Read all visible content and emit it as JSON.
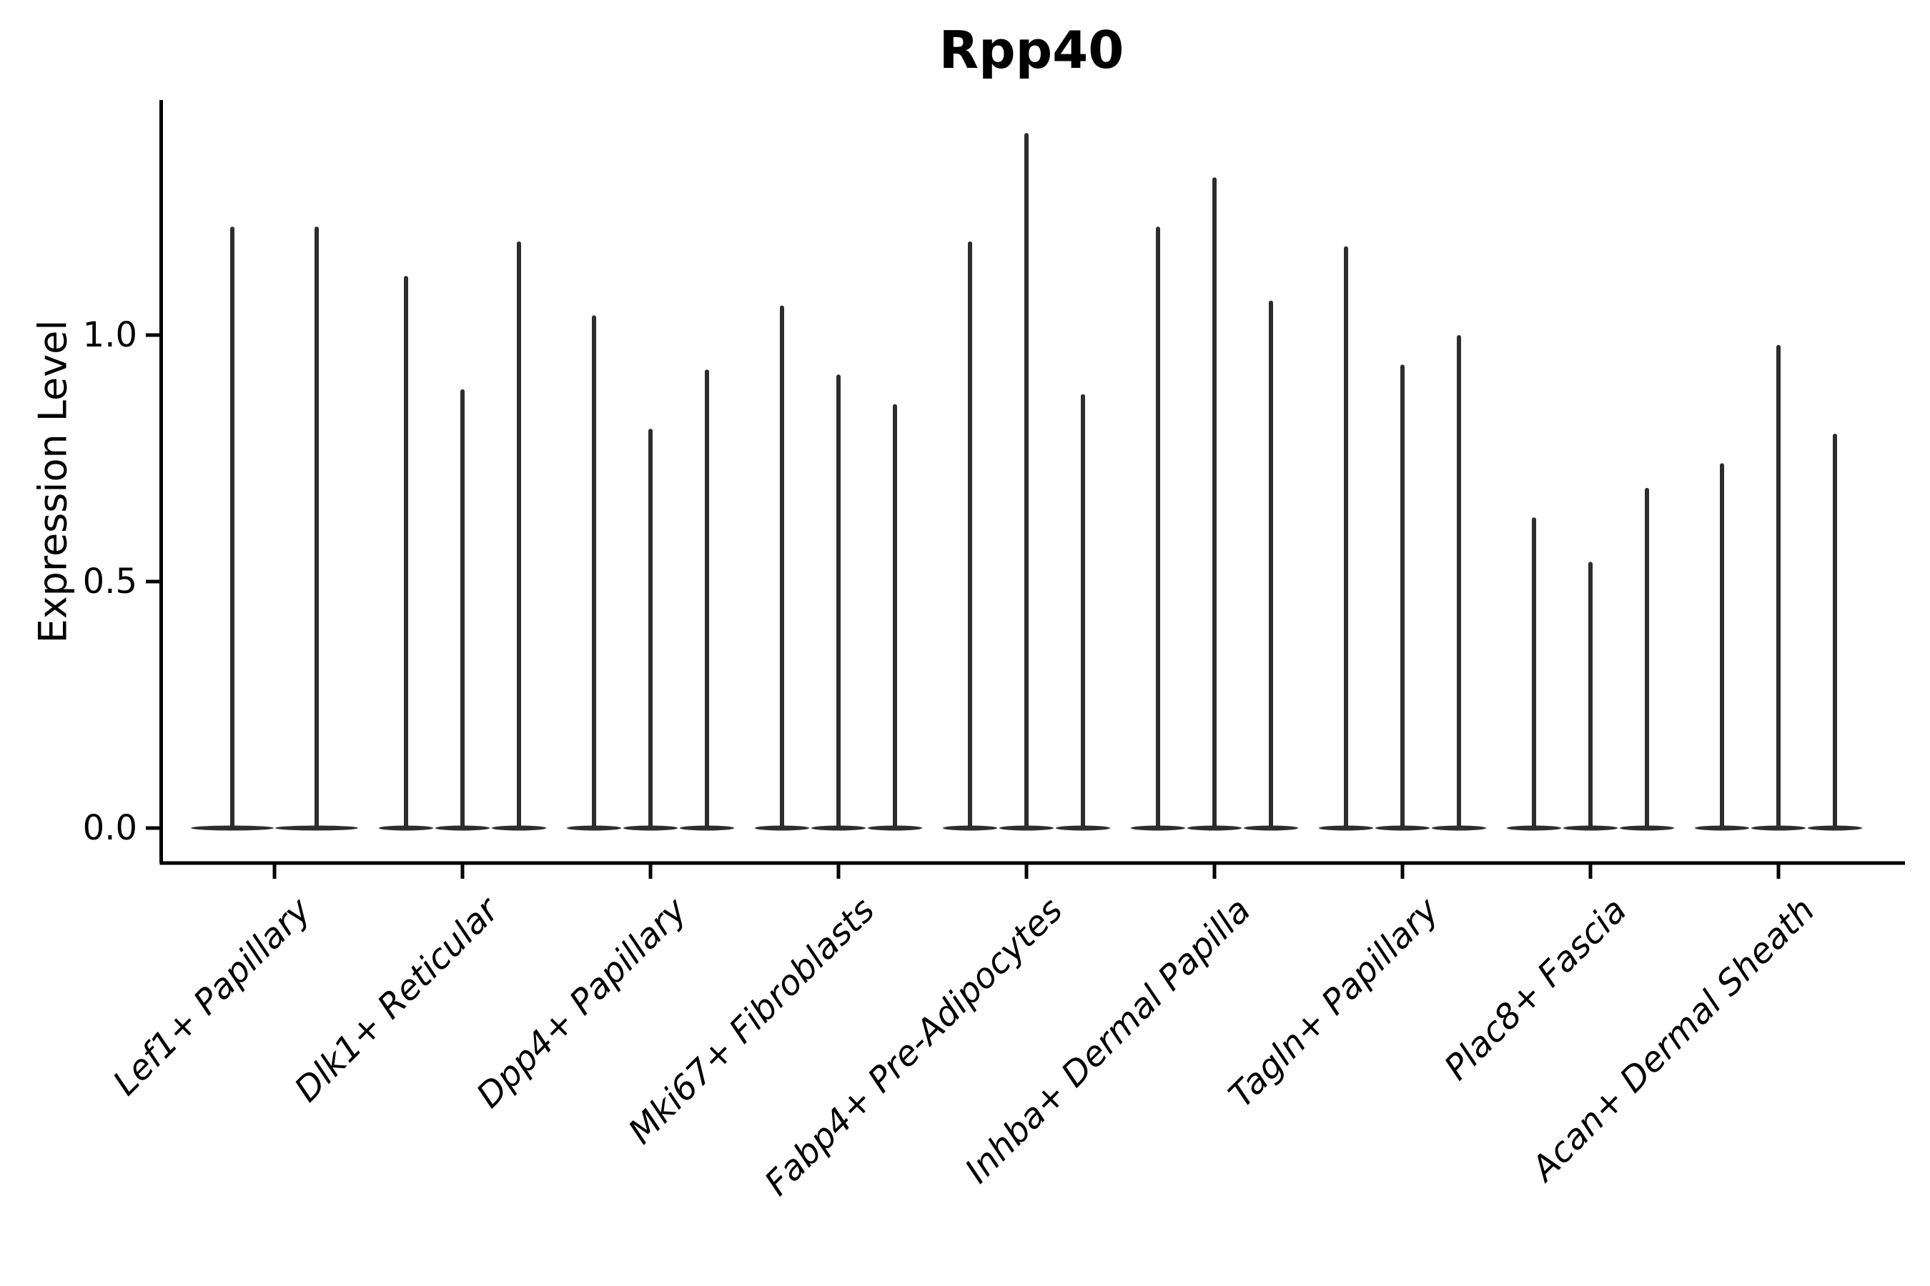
{
  "page": {
    "title": "Rpp40"
  },
  "chart_data": {
    "type": "violin",
    "title": "Rpp40",
    "xlabel": "",
    "ylabel": "Expression Level",
    "ytick_labels": [
      "0.0",
      "0.5",
      "1.0"
    ],
    "ytick_values": [
      0.0,
      0.5,
      1.0
    ],
    "ylim": [
      -0.07,
      1.48
    ],
    "grid": false,
    "legend_position": "none",
    "x_tick_rotation_deg": 45,
    "categories": [
      "Lef1+ Papillary",
      "Dlk1+ Reticular",
      "Dpp4+ Papillary",
      "Mki67+ Fibroblasts",
      "Fabp4+ Pre-Adipocytes",
      "Inhba+ Dermal Papilla",
      "Tagln+ Papillary",
      "Plac8+ Fascia",
      "Acan+ Dermal Sheath"
    ],
    "groups": [
      {
        "category": "Lef1+ Papillary",
        "violin_maxima": [
          1.22,
          1.22
        ]
      },
      {
        "category": "Dlk1+ Reticular",
        "violin_maxima": [
          1.12,
          0.89,
          1.19
        ]
      },
      {
        "category": "Dpp4+ Papillary",
        "violin_maxima": [
          1.04,
          0.81,
          0.93
        ]
      },
      {
        "category": "Mki67+ Fibroblasts",
        "violin_maxima": [
          1.06,
          0.92,
          0.86
        ]
      },
      {
        "category": "Fabp4+ Pre-Adipocytes",
        "violin_maxima": [
          1.19,
          1.41,
          0.88
        ]
      },
      {
        "category": "Inhba+ Dermal Papilla",
        "violin_maxima": [
          1.22,
          1.32,
          1.07
        ]
      },
      {
        "category": "Tagln+ Papillary",
        "violin_maxima": [
          1.18,
          0.94,
          1.0
        ]
      },
      {
        "category": "Plac8+ Fascia",
        "violin_maxima": [
          0.63,
          0.54,
          0.69
        ]
      },
      {
        "category": "Acan+ Dermal Sheath",
        "violin_maxima": [
          0.74,
          0.98,
          0.8
        ]
      }
    ],
    "distribution_note": "each violin has its mass concentrated at 0 with a thin spike rising to its maximum"
  },
  "colors": {
    "violin": "#2d2d2d",
    "text": "#000000",
    "axis": "#000000",
    "background": "#ffffff"
  }
}
